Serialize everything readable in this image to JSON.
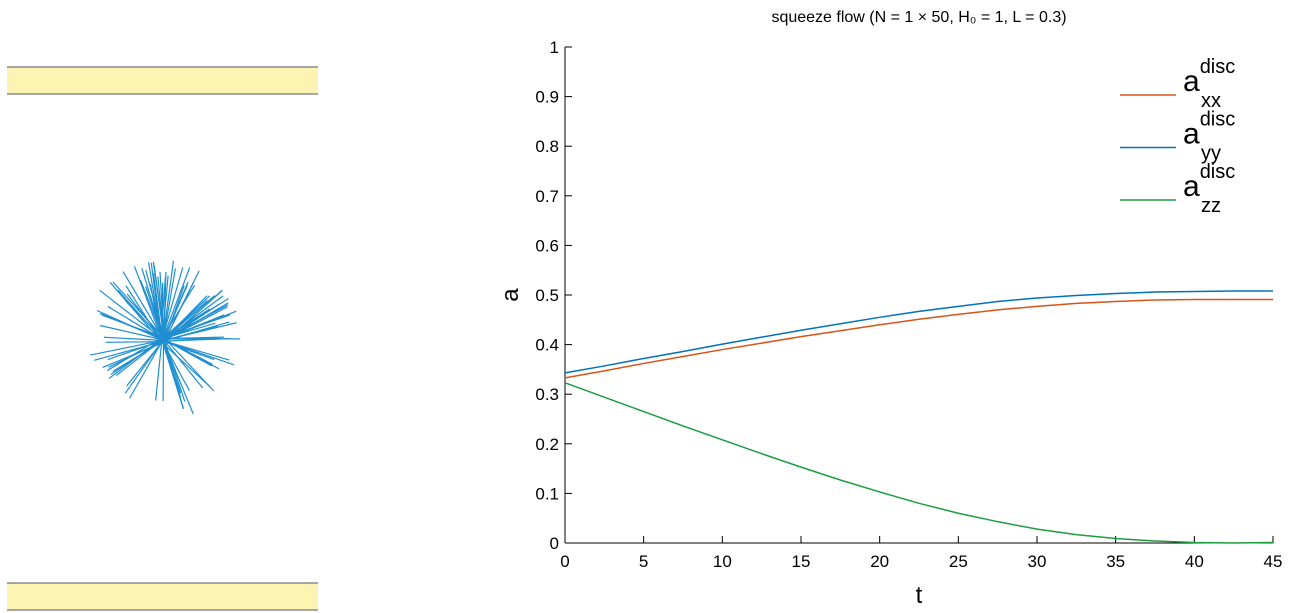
{
  "chart_data": {
    "type": "line",
    "title": "squeeze flow (N = 1 × 50, H₀ = 1, L = 0.3)",
    "x_label": "t",
    "y_label": "a",
    "x": [
      0,
      2.5,
      5,
      7.5,
      10,
      12.5,
      15,
      17.5,
      20,
      22.5,
      25,
      27.5,
      30,
      32.5,
      35,
      37.5,
      40,
      42.5,
      45
    ],
    "series": [
      {
        "name": "a",
        "name_sup": "disc",
        "name_sub": "xx",
        "color": "#d95319",
        "values": [
          0.333,
          0.347,
          0.362,
          0.376,
          0.39,
          0.403,
          0.416,
          0.428,
          0.44,
          0.451,
          0.461,
          0.47,
          0.477,
          0.483,
          0.487,
          0.49,
          0.491,
          0.491,
          0.491
        ]
      },
      {
        "name": "a",
        "name_sup": "disc",
        "name_sub": "yy",
        "color": "#0072bd",
        "values": [
          0.343,
          0.357,
          0.372,
          0.386,
          0.401,
          0.415,
          0.429,
          0.442,
          0.455,
          0.467,
          0.477,
          0.487,
          0.494,
          0.499,
          0.503,
          0.506,
          0.507,
          0.508,
          0.508
        ]
      },
      {
        "name": "a",
        "name_sup": "disc",
        "name_sub": "zz",
        "color": "#1a9e3f",
        "values": [
          0.323,
          0.294,
          0.265,
          0.236,
          0.208,
          0.18,
          0.153,
          0.127,
          0.103,
          0.08,
          0.06,
          0.043,
          0.028,
          0.017,
          0.009,
          0.004,
          0.001,
          0.0,
          0.001
        ]
      }
    ],
    "xlim": [
      0,
      45
    ],
    "xticks": [
      0,
      5,
      10,
      15,
      20,
      25,
      30,
      35,
      40,
      45
    ],
    "ylim": [
      0,
      1
    ],
    "yticks": [
      0,
      0.1,
      0.2,
      0.3,
      0.4,
      0.5,
      0.6,
      0.7,
      0.8,
      0.9,
      1
    ],
    "grid": false,
    "legend": "top-right"
  }
}
